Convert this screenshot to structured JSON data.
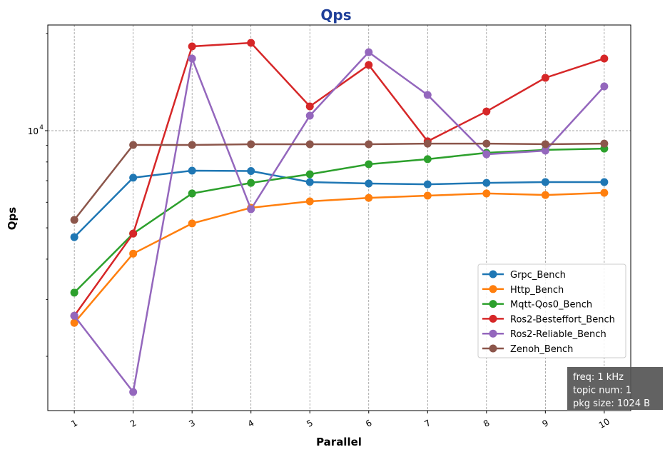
{
  "chart_data": {
    "type": "line",
    "title": "Qps",
    "xlabel": "Parallel",
    "ylabel": "Qps",
    "yscale": "log",
    "ylim": [
      1358,
      21250
    ],
    "xlim": [
      0.55,
      10.45
    ],
    "x": [
      1,
      2,
      3,
      4,
      5,
      6,
      7,
      8,
      9,
      10
    ],
    "x_tick_labels": [
      "1",
      "2",
      "3",
      "4",
      "5",
      "6",
      "7",
      "8",
      "9",
      "10"
    ],
    "y_major_ticks": [
      {
        "value": 10000,
        "label": "10",
        "exp": "4"
      }
    ],
    "grid": true,
    "legend_placement": "lower-right",
    "title_color": "#1f3f99",
    "series": [
      {
        "name": "Grpc_Bench",
        "color": "#1f77b4",
        "values": [
          4680,
          7150,
          7520,
          7500,
          6930,
          6860,
          6820,
          6890,
          6930,
          6930
        ]
      },
      {
        "name": "Http_Bench",
        "color": "#ff7f0e",
        "values": [
          2540,
          4160,
          5160,
          5770,
          6040,
          6190,
          6290,
          6390,
          6320,
          6420
        ]
      },
      {
        "name": "Mqtt-Qos0_Bench",
        "color": "#2ca02c",
        "values": [
          3150,
          4800,
          6390,
          6890,
          7330,
          7870,
          8160,
          8540,
          8720,
          8800
        ]
      },
      {
        "name": "Ros2-Besteffort_Bench",
        "color": "#d62728",
        "values": [
          2670,
          4800,
          18240,
          18710,
          11890,
          15980,
          9270,
          11470,
          14580,
          16730
        ]
      },
      {
        "name": "Ros2-Reliable_Bench",
        "color": "#9467bd",
        "values": [
          2670,
          1550,
          16730,
          5710,
          11130,
          17500,
          12900,
          8450,
          8670,
          13710
        ]
      },
      {
        "name": "Zenoh_Bench",
        "color": "#8c564b",
        "values": [
          5290,
          9030,
          9030,
          9080,
          9080,
          9080,
          9120,
          9120,
          9080,
          9120
        ]
      }
    ],
    "annotation": [
      "freq: 1 kHz",
      "topic num: 1",
      "pkg size: 1024  B"
    ]
  }
}
